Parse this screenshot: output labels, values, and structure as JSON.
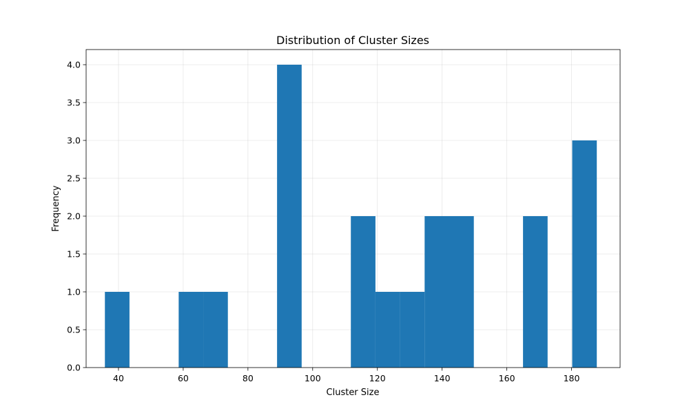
{
  "chart_data": {
    "type": "bar",
    "title": "Distribution of Cluster Sizes",
    "xlabel": "Cluster Size",
    "ylabel": "Frequency",
    "xlim": [
      30,
      195
    ],
    "ylim": [
      0,
      4.2
    ],
    "xticks": [
      40,
      60,
      80,
      100,
      120,
      140,
      160,
      180
    ],
    "xtick_labels": [
      "40",
      "60",
      "80",
      "100",
      "120",
      "140",
      "160",
      "180"
    ],
    "yticks": [
      0,
      0.5,
      1,
      1.5,
      2,
      2.5,
      3,
      3.5,
      4
    ],
    "ytick_labels": [
      "0.0",
      "0.5",
      "1.0",
      "1.5",
      "2.0",
      "2.5",
      "3.0",
      "3.5",
      "4.0"
    ],
    "grid": true,
    "color": "#1f77b4",
    "bins": [
      {
        "start": 35.8,
        "end": 43.4,
        "count": 1
      },
      {
        "start": 43.4,
        "end": 51.0,
        "count": 0
      },
      {
        "start": 51.0,
        "end": 58.6,
        "count": 0
      },
      {
        "start": 58.6,
        "end": 66.2,
        "count": 1
      },
      {
        "start": 66.2,
        "end": 73.8,
        "count": 1
      },
      {
        "start": 73.8,
        "end": 81.4,
        "count": 0
      },
      {
        "start": 81.4,
        "end": 89.0,
        "count": 0
      },
      {
        "start": 89.0,
        "end": 96.6,
        "count": 4
      },
      {
        "start": 96.6,
        "end": 104.2,
        "count": 0
      },
      {
        "start": 104.2,
        "end": 111.8,
        "count": 0
      },
      {
        "start": 111.8,
        "end": 119.4,
        "count": 2
      },
      {
        "start": 119.4,
        "end": 127.0,
        "count": 1
      },
      {
        "start": 127.0,
        "end": 134.6,
        "count": 1
      },
      {
        "start": 134.6,
        "end": 142.2,
        "count": 2
      },
      {
        "start": 142.2,
        "end": 149.8,
        "count": 2
      },
      {
        "start": 149.8,
        "end": 157.4,
        "count": 0
      },
      {
        "start": 157.4,
        "end": 165.0,
        "count": 0
      },
      {
        "start": 165.0,
        "end": 172.6,
        "count": 2
      },
      {
        "start": 172.6,
        "end": 180.2,
        "count": 0
      },
      {
        "start": 180.2,
        "end": 187.8,
        "count": 3
      }
    ]
  }
}
